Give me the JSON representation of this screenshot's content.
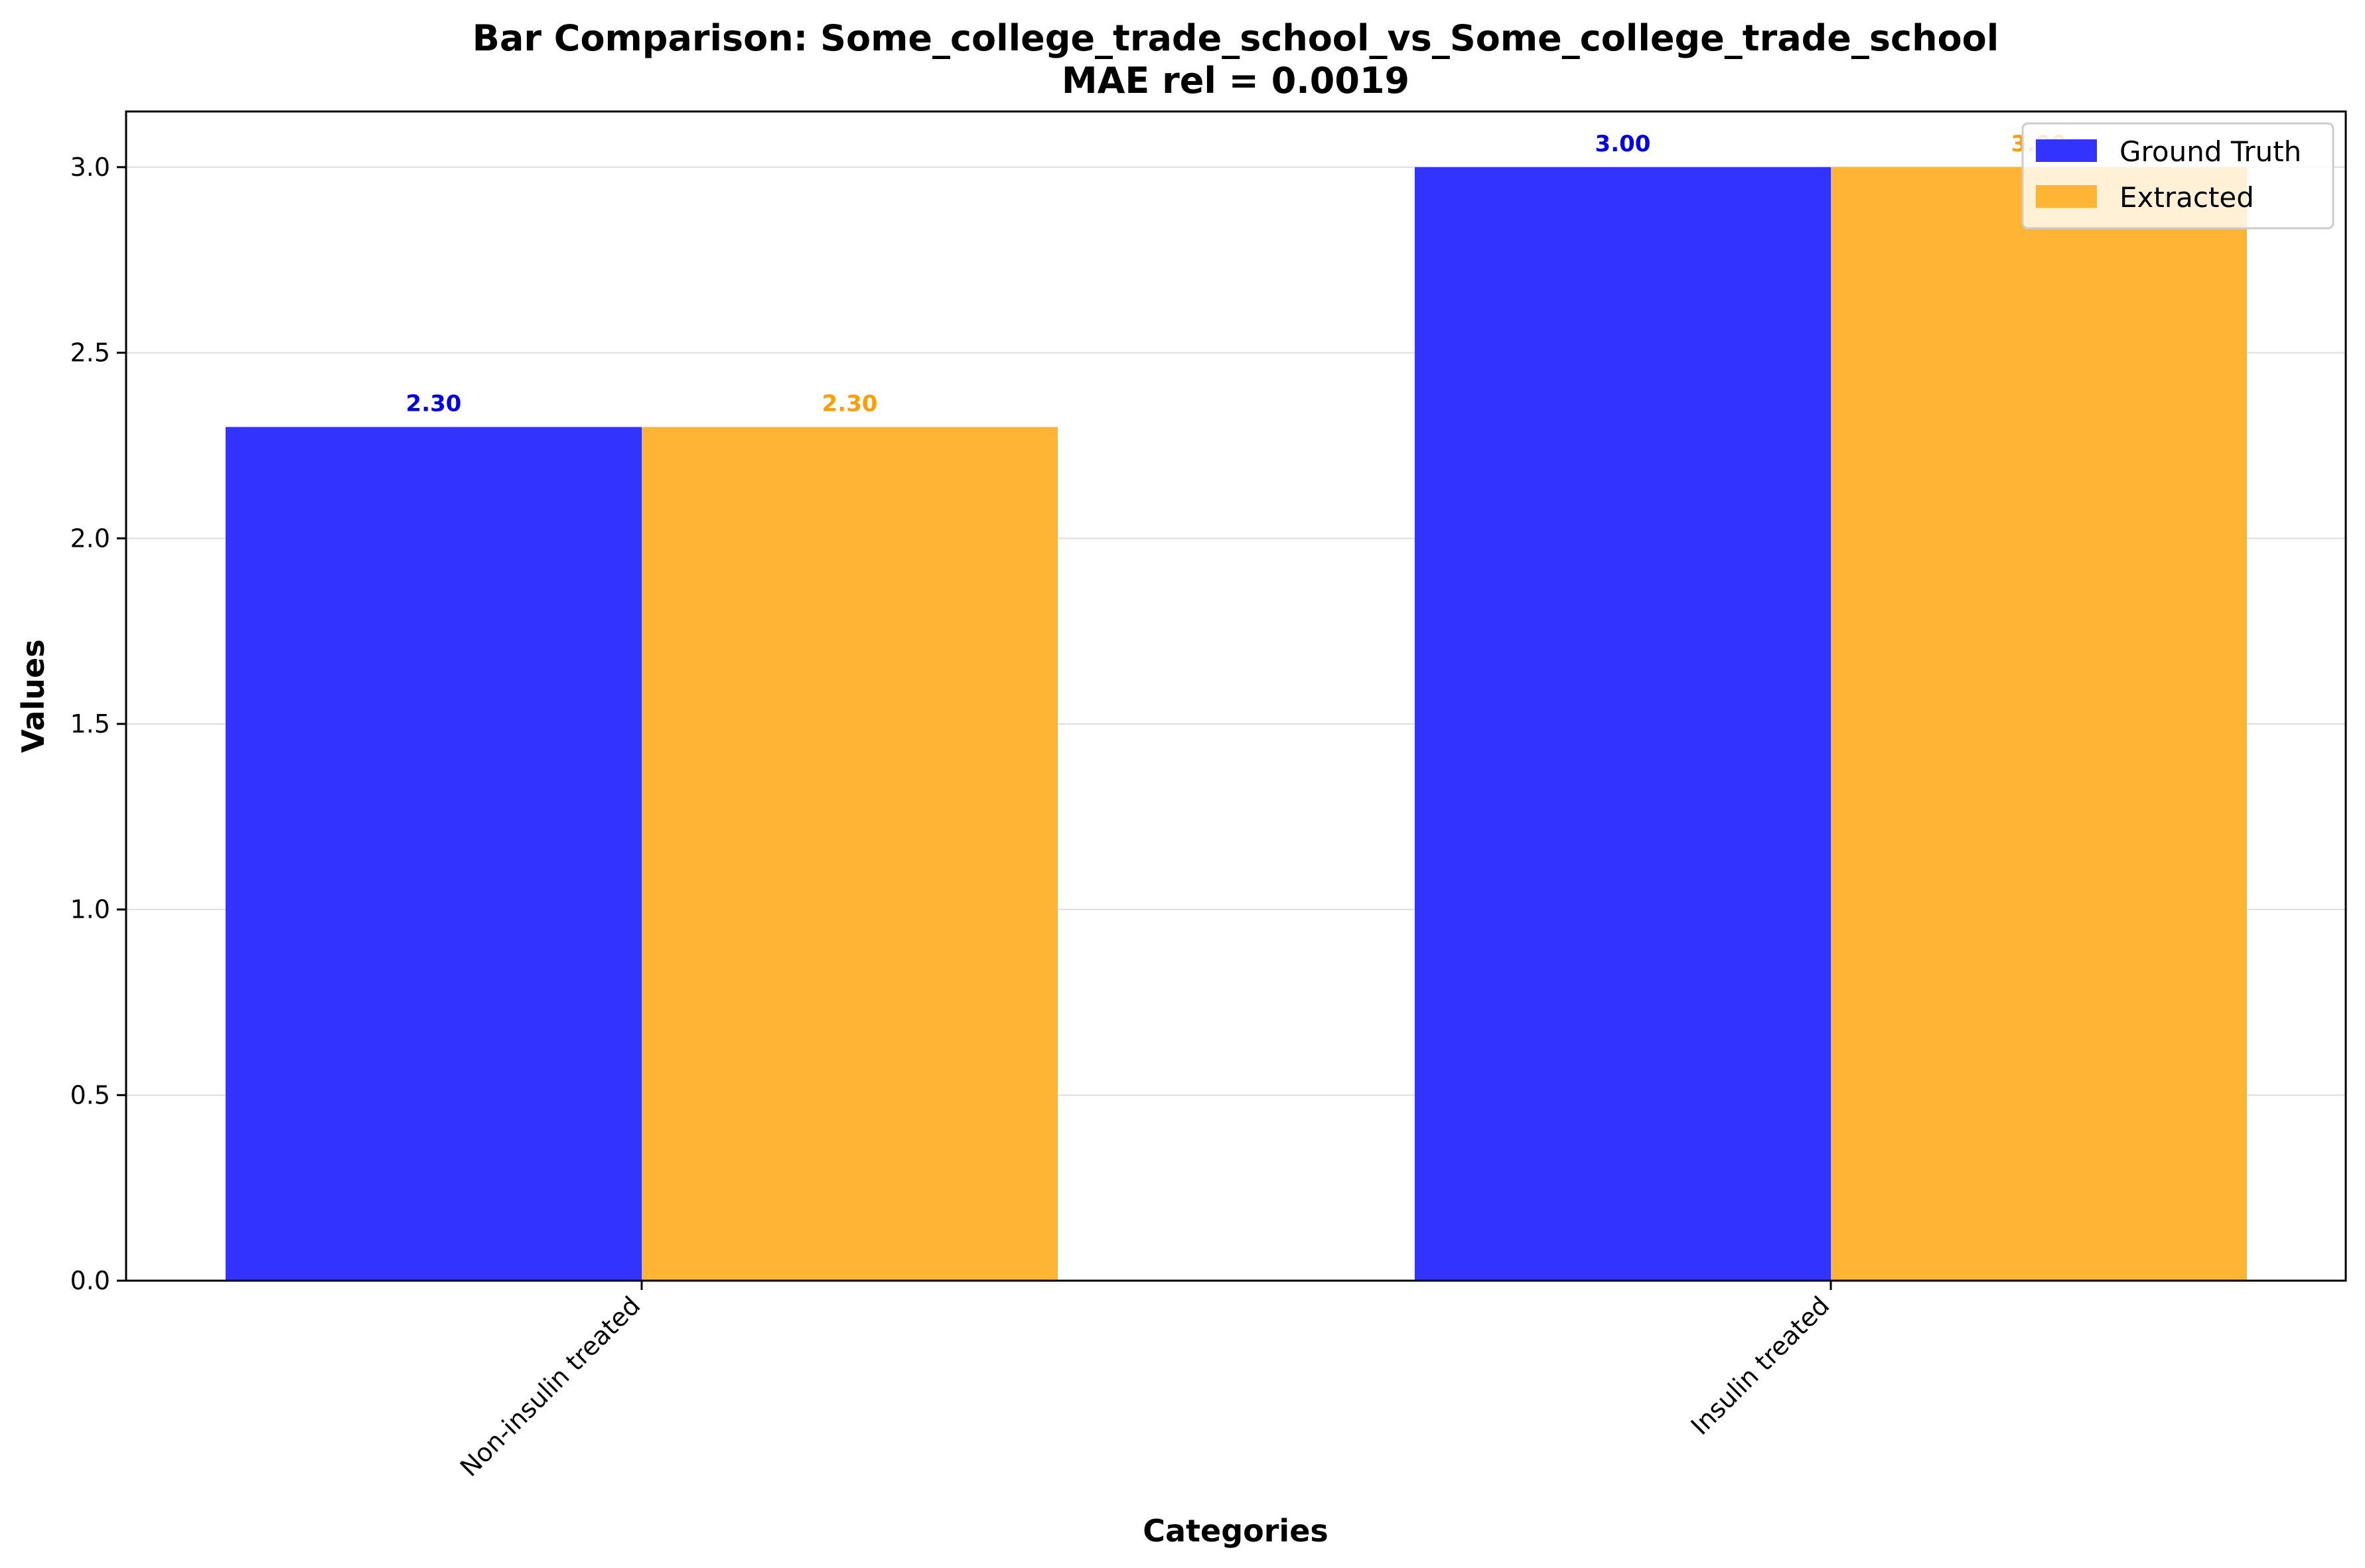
{
  "chart_data": {
    "type": "bar",
    "title": "Bar Comparison: Some_college_trade_school_vs_Some_college_trade_school",
    "subtitle": "MAE rel = 0.0019",
    "xlabel": "Categories",
    "ylabel": "Values",
    "categories": [
      "Non-insulin treated",
      "Insulin treated"
    ],
    "series": [
      {
        "name": "Ground Truth",
        "values": [
          2.3,
          3.0
        ],
        "labels": [
          "2.30",
          "3.00"
        ],
        "color": "#3333ff",
        "label_color": "#0000ee"
      },
      {
        "name": "Extracted",
        "values": [
          2.3,
          3.0
        ],
        "labels": [
          "2.30",
          "3.00"
        ],
        "color": "#ffb533",
        "label_color": "#ff9f00"
      }
    ],
    "ylim": [
      0,
      3.15
    ],
    "yticks": [
      0.0,
      0.5,
      1.0,
      1.5,
      2.0,
      2.5,
      3.0
    ],
    "ytick_labels": [
      "0.0",
      "0.5",
      "1.0",
      "1.5",
      "2.0",
      "2.5",
      "3.0"
    ],
    "grid": "horizontal",
    "legend_position": "top-right"
  }
}
